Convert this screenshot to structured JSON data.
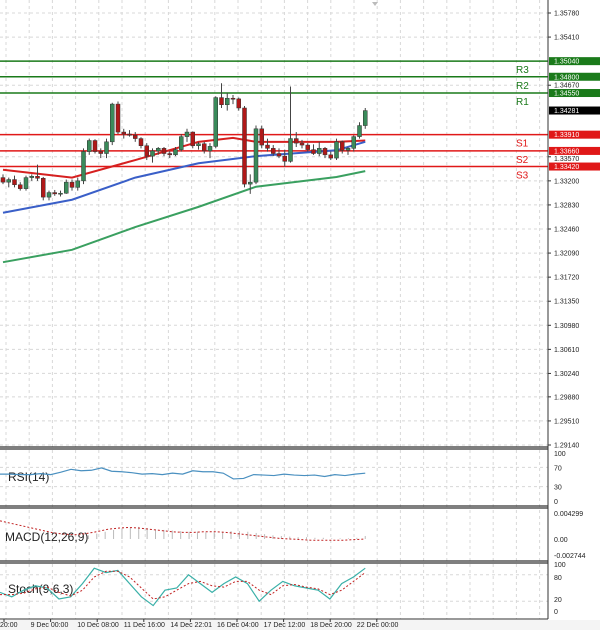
{
  "chart_data": [
    {
      "type": "candlestick",
      "price_axis": {
        "range": [
          1.2914,
          1.3578
        ],
        "ticks": [
          "1.35780",
          "1.35410",
          "1.34670",
          "1.33570",
          "1.33200",
          "1.32830",
          "1.32460",
          "1.32090",
          "1.31720",
          "1.31350",
          "1.30980",
          "1.30610",
          "1.30240",
          "1.29880",
          "1.29510",
          "1.29140"
        ],
        "grid": true
      },
      "current_price": "1.34281",
      "candles_ohlc": [
        [
          1.3325,
          1.333,
          1.3315,
          1.3318
        ],
        [
          1.3318,
          1.3325,
          1.331,
          1.3322
        ],
        [
          1.3322,
          1.3328,
          1.331,
          1.3314
        ],
        [
          1.3314,
          1.3318,
          1.3305,
          1.3308
        ],
        [
          1.3308,
          1.3328,
          1.3305,
          1.3325
        ],
        [
          1.3325,
          1.333,
          1.332,
          1.3327
        ],
        [
          1.3327,
          1.3345,
          1.332,
          1.3324
        ],
        [
          1.3324,
          1.3326,
          1.329,
          1.3295
        ],
        [
          1.3295,
          1.3305,
          1.329,
          1.3302
        ],
        [
          1.3302,
          1.3306,
          1.3297,
          1.33
        ],
        [
          1.33,
          1.3305,
          1.3296,
          1.3301
        ],
        [
          1.3301,
          1.3322,
          1.33,
          1.3318
        ],
        [
          1.3318,
          1.3322,
          1.3305,
          1.331
        ],
        [
          1.331,
          1.3325,
          1.3305,
          1.332
        ],
        [
          1.332,
          1.337,
          1.3315,
          1.3365
        ],
        [
          1.3365,
          1.3385,
          1.336,
          1.3382
        ],
        [
          1.3382,
          1.3384,
          1.3362,
          1.3365
        ],
        [
          1.3365,
          1.337,
          1.3355,
          1.3362
        ],
        [
          1.3362,
          1.3385,
          1.3355,
          1.338
        ],
        [
          1.338,
          1.344,
          1.3375,
          1.3438
        ],
        [
          1.3438,
          1.3442,
          1.3392,
          1.3395
        ],
        [
          1.3395,
          1.34,
          1.3385,
          1.3392
        ],
        [
          1.3392,
          1.3398,
          1.3388,
          1.339
        ],
        [
          1.339,
          1.3395,
          1.338,
          1.3385
        ],
        [
          1.3385,
          1.3387,
          1.337,
          1.3374
        ],
        [
          1.3374,
          1.3378,
          1.3352,
          1.3358
        ],
        [
          1.3358,
          1.337,
          1.3348,
          1.3366
        ],
        [
          1.3366,
          1.3372,
          1.336,
          1.337
        ],
        [
          1.337,
          1.3372,
          1.3358,
          1.3362
        ],
        [
          1.3362,
          1.3366,
          1.3355,
          1.336
        ],
        [
          1.336,
          1.3372,
          1.3358,
          1.3368
        ],
        [
          1.3368,
          1.3392,
          1.3365,
          1.3388
        ],
        [
          1.3388,
          1.34,
          1.338,
          1.3395
        ],
        [
          1.3395,
          1.3396,
          1.337,
          1.3374
        ],
        [
          1.3374,
          1.338,
          1.3368,
          1.3377
        ],
        [
          1.3377,
          1.338,
          1.3362,
          1.3366
        ],
        [
          1.3366,
          1.3378,
          1.3355,
          1.3373
        ],
        [
          1.3373,
          1.345,
          1.337,
          1.3448
        ],
        [
          1.3448,
          1.347,
          1.3432,
          1.3437
        ],
        [
          1.3437,
          1.3455,
          1.3428,
          1.3447
        ],
        [
          1.3447,
          1.3452,
          1.3438,
          1.3446
        ],
        [
          1.3446,
          1.3448,
          1.3428,
          1.3432
        ],
        [
          1.3432,
          1.3435,
          1.331,
          1.3315
        ],
        [
          1.3315,
          1.333,
          1.33,
          1.3318
        ],
        [
          1.3318,
          1.3405,
          1.3315,
          1.34
        ],
        [
          1.34,
          1.3405,
          1.337,
          1.3375
        ],
        [
          1.3375,
          1.3385,
          1.3365,
          1.337
        ],
        [
          1.337,
          1.3375,
          1.3358,
          1.3362
        ],
        [
          1.3362,
          1.337,
          1.3355,
          1.3358
        ],
        [
          1.3358,
          1.3368,
          1.3342,
          1.335
        ],
        [
          1.335,
          1.3465,
          1.3348,
          1.3385
        ],
        [
          1.3385,
          1.3395,
          1.3372,
          1.3378
        ],
        [
          1.3378,
          1.3383,
          1.337,
          1.3375
        ],
        [
          1.3375,
          1.3378,
          1.3365,
          1.3368
        ],
        [
          1.3368,
          1.3376,
          1.336,
          1.3362
        ],
        [
          1.3362,
          1.338,
          1.3358,
          1.337
        ],
        [
          1.337,
          1.3372,
          1.3355,
          1.336
        ],
        [
          1.336,
          1.3365,
          1.3352,
          1.3355
        ],
        [
          1.3355,
          1.3385,
          1.3352,
          1.338
        ],
        [
          1.338,
          1.3382,
          1.3362,
          1.3367
        ],
        [
          1.3367,
          1.3372,
          1.336,
          1.337
        ],
        [
          1.337,
          1.339,
          1.3365,
          1.3388
        ],
        [
          1.3388,
          1.341,
          1.3385,
          1.3405
        ],
        [
          1.3405,
          1.3432,
          1.34,
          1.3428
        ]
      ],
      "moving_averages": [
        {
          "color": "#d62020",
          "points": [
            [
              0,
              1.3337
            ],
            [
              12,
              1.3325
            ],
            [
              23,
              1.3352
            ],
            [
              34,
              1.338
            ],
            [
              40,
              1.3386
            ],
            [
              44,
              1.338
            ],
            [
              58,
              1.338
            ],
            [
              63,
              1.3382
            ]
          ]
        },
        {
          "color": "#3a5fc8",
          "points": [
            [
              0,
              1.3271
            ],
            [
              12,
              1.3291
            ],
            [
              23,
              1.3325
            ],
            [
              34,
              1.3347
            ],
            [
              44,
              1.3358
            ],
            [
              58,
              1.3367
            ],
            [
              63,
              1.338
            ]
          ]
        },
        {
          "color": "#3aa060",
          "points": [
            [
              0,
              1.3195
            ],
            [
              12,
              1.3214
            ],
            [
              23,
              1.3249
            ],
            [
              34,
              1.328
            ],
            [
              44,
              1.3311
            ],
            [
              58,
              1.3326
            ],
            [
              63,
              1.3335
            ]
          ]
        }
      ],
      "levels": [
        {
          "label": "R3",
          "value": "1.35040",
          "color": "#1a7a1a"
        },
        {
          "label": "R2",
          "value": "1.34800",
          "color": "#1a7a1a"
        },
        {
          "label": "R1",
          "value": "1.34550",
          "color": "#1a7a1a"
        },
        {
          "label": "S1",
          "value": "1.33910",
          "color": "#e01818"
        },
        {
          "label": "S2",
          "value": "1.33660",
          "color": "#e01818"
        },
        {
          "label": "S3",
          "value": "1.33420",
          "color": "#e01818"
        }
      ],
      "x_labels": [
        "20:00",
        "9 Dec 00:00",
        "10 Dec 08:00",
        "11 Dec 16:00",
        "14 Dec 22:01",
        "16 Dec 04:00",
        "17 Dec 12:00",
        "18 Dec 20:00",
        "22 Dec 00:00"
      ]
    },
    {
      "type": "line",
      "label": "RSI(14)",
      "ticks": [
        "100",
        "70",
        "30",
        "0"
      ],
      "ylim": [
        0,
        100
      ],
      "color": "#4a90c0",
      "values": [
        56,
        56,
        55,
        55,
        57,
        55,
        60,
        66,
        63,
        64,
        69,
        62,
        61,
        59,
        56,
        57,
        55,
        58,
        56,
        63,
        61,
        61,
        58,
        46,
        47,
        55,
        54,
        53,
        56,
        54,
        53,
        54,
        51,
        55,
        53,
        56,
        58
      ]
    },
    {
      "type": "bar+line",
      "label": "MACD(12,26,9)",
      "ticks": [
        "0.004299",
        "0.00",
        "-0.002744"
      ],
      "ylim": [
        -0.002744,
        0.004299
      ],
      "histogram": [
        0.0004,
        0.0006,
        0.0009,
        0.0012,
        0.0015,
        0.0017,
        0.0019,
        0.002,
        0.0018,
        0.0016,
        0.0015,
        0.0014,
        0.0013,
        0.0012,
        0.0012,
        0.0011,
        0.0011,
        0.0012,
        0.0013,
        0.0013,
        0.0012,
        0.001,
        0.0008,
        0.0006,
        0.0005,
        0.0004,
        0.0003,
        0.0003,
        0.0002,
        0.0002,
        0.0001,
        0.0001,
        0.0001,
        0.0002,
        0.0005
      ],
      "signal": [
        0.003,
        0.0026,
        0.0022,
        0.0018,
        0.0014,
        0.001,
        0.0008,
        0.0007,
        0.0009,
        0.0012,
        0.0016,
        0.0018,
        0.0019,
        0.0018,
        0.0016,
        0.0014,
        0.0012,
        0.0011,
        0.0011,
        0.0012,
        0.0012,
        0.0011,
        0.0009,
        0.0007,
        0.0005,
        0.0003,
        0.0001,
        0.0,
        -0.0001,
        -0.0002,
        -0.0002,
        -0.0002,
        -0.0002,
        -0.0001,
        0.0
      ],
      "signal_color": "#c02020"
    },
    {
      "type": "line",
      "label": "Stoch(9,6,3)",
      "ticks": [
        "100",
        "80",
        "20",
        "0"
      ],
      "ylim": [
        0,
        100
      ],
      "main": [
        40,
        30,
        45,
        55,
        50,
        25,
        30,
        60,
        95,
        85,
        90,
        60,
        30,
        10,
        45,
        50,
        80,
        60,
        40,
        60,
        75,
        60,
        20,
        45,
        65,
        55,
        50,
        45,
        25,
        60,
        75,
        95
      ],
      "signal": [
        35,
        35,
        38,
        48,
        52,
        40,
        32,
        45,
        75,
        88,
        88,
        75,
        50,
        25,
        30,
        45,
        60,
        65,
        55,
        52,
        65,
        65,
        45,
        35,
        55,
        58,
        52,
        48,
        35,
        45,
        65,
        85
      ],
      "main_color": "#3ab0a8",
      "signal_color": "#c02020"
    }
  ]
}
